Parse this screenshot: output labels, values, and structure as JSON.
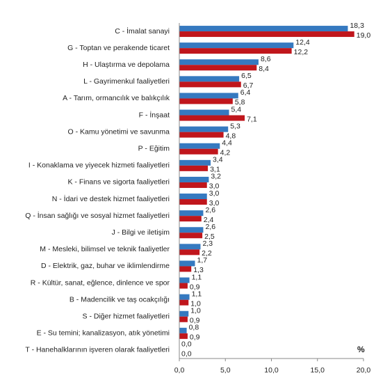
{
  "chart_data": {
    "type": "hbar",
    "annotation": "%",
    "categories": [
      "C - İmalat sanayi",
      "G - Toptan ve perakende ticaret",
      "H - Ulaştırma ve depolama",
      "L - Gayrimenkul faaliyetleri",
      "A - Tarım, ormancılık ve balıkçılık",
      "F - İnşaat",
      "O - Kamu yönetimi ve savunma",
      "P - Eğitim",
      "I - Konaklama ve yiyecek hizmeti faaliyetleri",
      "K - Finans ve sigorta faaliyetleri",
      "N - İdari ve destek hizmet faaliyetleri",
      "Q - İnsan sağlığı ve sosyal hizmet faaliyetleri",
      "J - Bilgi ve iletişim",
      "M - Mesleki, bilimsel ve teknik faaliyetler",
      "D - Elektrik, gaz, buhar ve iklimlendirme",
      "R - Kültür, sanat, eğlence, dinlence ve spor",
      "B - Madencilik ve taş ocakçılığı",
      "S - Diğer hizmet faaliyetleri",
      "E - Su temini; kanalizasyon, atık yönetimi",
      "T - Hanehalklarının işveren olarak faaliyetleri"
    ],
    "series": [
      {
        "color": "#3579c0",
        "values": [
          18.3,
          12.4,
          8.6,
          6.5,
          6.4,
          5.4,
          5.3,
          4.4,
          3.4,
          3.2,
          3.0,
          2.6,
          2.6,
          2.3,
          1.7,
          1.1,
          1.1,
          1.0,
          0.8,
          0.0
        ],
        "value_labels": [
          "18,3",
          "12,4",
          "8,6",
          "6,5",
          "6,4",
          "5,4",
          "5,3",
          "4,4",
          "3,4",
          "3,2",
          "3,0",
          "2,6",
          "2,6",
          "2,3",
          "1,7",
          "1,1",
          "1,1",
          "1,0",
          "0,8",
          "0,0"
        ]
      },
      {
        "color": "#c0161c",
        "values": [
          19.0,
          12.2,
          8.4,
          6.7,
          5.8,
          7.1,
          4.8,
          4.2,
          3.1,
          3.0,
          3.0,
          2.4,
          2.5,
          2.2,
          1.3,
          0.9,
          1.0,
          0.9,
          0.9,
          0.0
        ],
        "value_labels": [
          "19,0",
          "12,2",
          "8,4",
          "6,7",
          "5,8",
          "7,1",
          "4,8",
          "4,2",
          "3,1",
          "3,0",
          "3,0",
          "2,4",
          "2,5",
          "2,2",
          "1,3",
          "0,9",
          "1,0",
          "0,9",
          "0,9",
          "0,0"
        ]
      }
    ],
    "xlim": [
      0,
      20
    ],
    "xticks": [
      {
        "value": 0,
        "label": "0,0"
      },
      {
        "value": 5,
        "label": "5,0"
      },
      {
        "value": 10,
        "label": "10,0"
      },
      {
        "value": 15,
        "label": "15,0"
      },
      {
        "value": 20,
        "label": "20,0"
      }
    ]
  }
}
